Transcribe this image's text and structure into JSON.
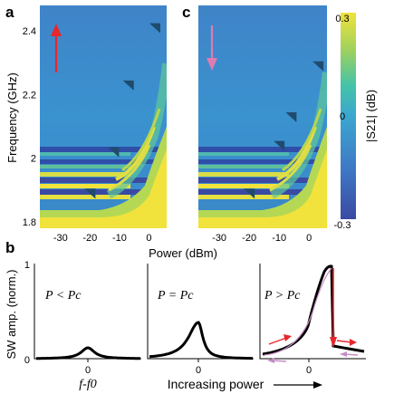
{
  "panels": {
    "a": "a",
    "c": "c",
    "b": "b"
  },
  "chart_data": [
    {
      "type": "heatmap",
      "panel": "a",
      "xlabel": "Power (dBm)",
      "ylabel": "Frequency (GHz)",
      "x_ticks": [
        "-30",
        "-20",
        "-10",
        "0"
      ],
      "y_ticks": [
        "1.8",
        "2",
        "2.2",
        "2.4"
      ],
      "xlim": [
        -37,
        6
      ],
      "ylim": [
        1.78,
        2.48
      ],
      "sweep_arrow": "up",
      "sweep_arrow_color": "#e8262b",
      "markers": [
        {
          "power": -20,
          "freq": 1.89
        },
        {
          "power": -12,
          "freq": 2.02
        },
        {
          "power": -7,
          "freq": 2.23
        },
        {
          "power": 2,
          "freq": 2.41
        }
      ]
    },
    {
      "type": "heatmap",
      "panel": "c",
      "xlabel": "Power (dBm)",
      "ylabel": "",
      "x_ticks": [
        "-30",
        "-20",
        "-10",
        "0"
      ],
      "xlim": [
        -37,
        6
      ],
      "ylim": [
        1.78,
        2.48
      ],
      "sweep_arrow": "down",
      "sweep_arrow_color": "#e07ab0",
      "markers": [
        {
          "power": -20,
          "freq": 1.89
        },
        {
          "power": -10,
          "freq": 2.04
        },
        {
          "power": -6,
          "freq": 2.13
        },
        {
          "power": 3,
          "freq": 2.29
        }
      ]
    },
    {
      "type": "colorbar",
      "label": "|S21| (dB)",
      "ticks": [
        "0.3",
        "0",
        "-0.3"
      ],
      "range": [
        -0.3,
        0.3
      ],
      "colors": [
        "#3a4aa2",
        "#3f79c6",
        "#3ba7cf",
        "#45c3a7",
        "#9fd15e",
        "#f1e23c"
      ]
    },
    {
      "type": "line",
      "panel": "b1",
      "ylabel": "SW amp. (norm.)",
      "y_ticks": [
        "0",
        "1"
      ],
      "x_ticks": [
        "0"
      ],
      "xlabel": "f-f0",
      "condition": "P < Pc",
      "center_x": 0,
      "peak_y": 0.12,
      "half_width": 0.15
    },
    {
      "type": "line",
      "panel": "b2",
      "x_ticks": [
        "0"
      ],
      "condition": "P = Pc",
      "center_x": 0,
      "peak_y": 0.4,
      "half_width": 0.22,
      "skew": "right"
    },
    {
      "type": "line",
      "panel": "b3",
      "x_ticks": [
        "0"
      ],
      "condition": "P > Pc",
      "center_x": 0,
      "peak_y": 0.95,
      "foldover": true,
      "annotation_colors": {
        "up_sweep": "#e8262b",
        "down_sweep": "#c58ec5"
      }
    }
  ],
  "bottom_label": "Increasing power"
}
